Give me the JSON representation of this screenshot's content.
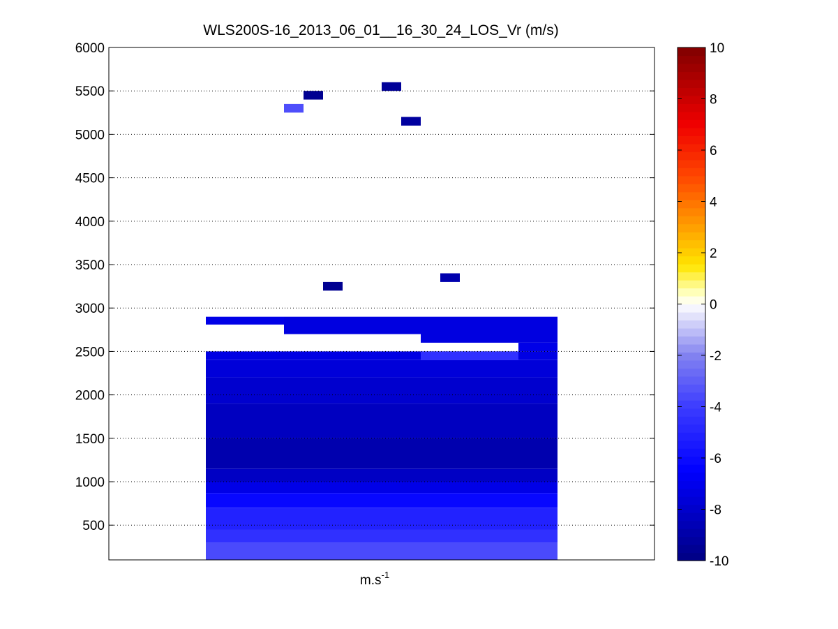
{
  "chart_data": {
    "type": "heatmap",
    "title": "WLS200S-16_2013_06_01__16_30_24_LOS_Vr (m/s)",
    "xlabel_base": "m.s",
    "xlabel_exp": "-1",
    "ylabel": "",
    "ylim": [
      100,
      6000
    ],
    "yticks": [
      500,
      1000,
      1500,
      2000,
      2500,
      3000,
      3500,
      4000,
      4500,
      5000,
      5500,
      6000
    ],
    "ygrid": true,
    "xticks_visible": false,
    "colorbar": {
      "range": [
        -10,
        10
      ],
      "ticks": [
        -10,
        -8,
        -6,
        -4,
        -2,
        0,
        2,
        4,
        6,
        8,
        10
      ],
      "colormap": "blue-white-red (jet-like above zero)"
    },
    "colors": {
      "navy": "#00008b",
      "dark_blue": "#0a0ac8",
      "blue": "#1e1ee6",
      "mid_blue": "#2a2af0",
      "light_blue": "#8080f0",
      "pale_blue": "#6a6af2",
      "dark_red": "#800000"
    },
    "columns": 18,
    "cells": [
      {
        "col": [
          0,
          3
        ],
        "alt": [
          2810,
          2900
        ],
        "v": -7.2
      },
      {
        "col": [
          4,
          17
        ],
        "alt": [
          2700,
          2900
        ],
        "v": -7.4
      },
      {
        "col": [
          11,
          17
        ],
        "alt": [
          2600,
          2700
        ],
        "v": -7.4
      },
      {
        "col": [
          16,
          17
        ],
        "alt": [
          2500,
          2600
        ],
        "v": -7.2
      },
      {
        "col": [
          0,
          17
        ],
        "alt": [
          2400,
          2500
        ],
        "v": -7.3
      },
      {
        "col": [
          11,
          15
        ],
        "alt": [
          2400,
          2500
        ],
        "v": -4.5
      },
      {
        "col": [
          0,
          17
        ],
        "alt": [
          2200,
          2400
        ],
        "v": -7.6
      },
      {
        "col": [
          0,
          17
        ],
        "alt": [
          1900,
          2200
        ],
        "v": -7.9
      },
      {
        "col": [
          0,
          17
        ],
        "alt": [
          1500,
          1900
        ],
        "v": -8.3
      },
      {
        "col": [
          0,
          17
        ],
        "alt": [
          1150,
          1500
        ],
        "v": -8.8
      },
      {
        "col": [
          0,
          17
        ],
        "alt": [
          1000,
          1150
        ],
        "v": -8.2
      },
      {
        "col": [
          0,
          17
        ],
        "alt": [
          870,
          1000
        ],
        "v": -7.2
      },
      {
        "col": [
          0,
          17
        ],
        "alt": [
          700,
          870
        ],
        "v": -6.2
      },
      {
        "col": [
          0,
          17
        ],
        "alt": [
          450,
          700
        ],
        "v": -5.1
      },
      {
        "col": [
          0,
          17
        ],
        "alt": [
          300,
          450
        ],
        "v": -4.5
      },
      {
        "col": [
          0,
          17
        ],
        "alt": [
          100,
          300
        ],
        "v": -3.6
      },
      {
        "col": [
          4,
          4
        ],
        "alt": [
          5250,
          5350
        ],
        "v": -3.5
      },
      {
        "col": [
          5,
          5
        ],
        "alt": [
          5400,
          5500
        ],
        "v": -9.6
      },
      {
        "col": [
          9,
          9
        ],
        "alt": [
          5500,
          5600
        ],
        "v": -9.4
      },
      {
        "col": [
          10,
          10
        ],
        "alt": [
          5100,
          5200
        ],
        "v": -9.2
      },
      {
        "col": [
          6,
          6
        ],
        "alt": [
          3200,
          3300
        ],
        "v": -9.6
      },
      {
        "col": [
          12,
          12
        ],
        "alt": [
          3300,
          3400
        ],
        "v": -8.8
      }
    ]
  }
}
